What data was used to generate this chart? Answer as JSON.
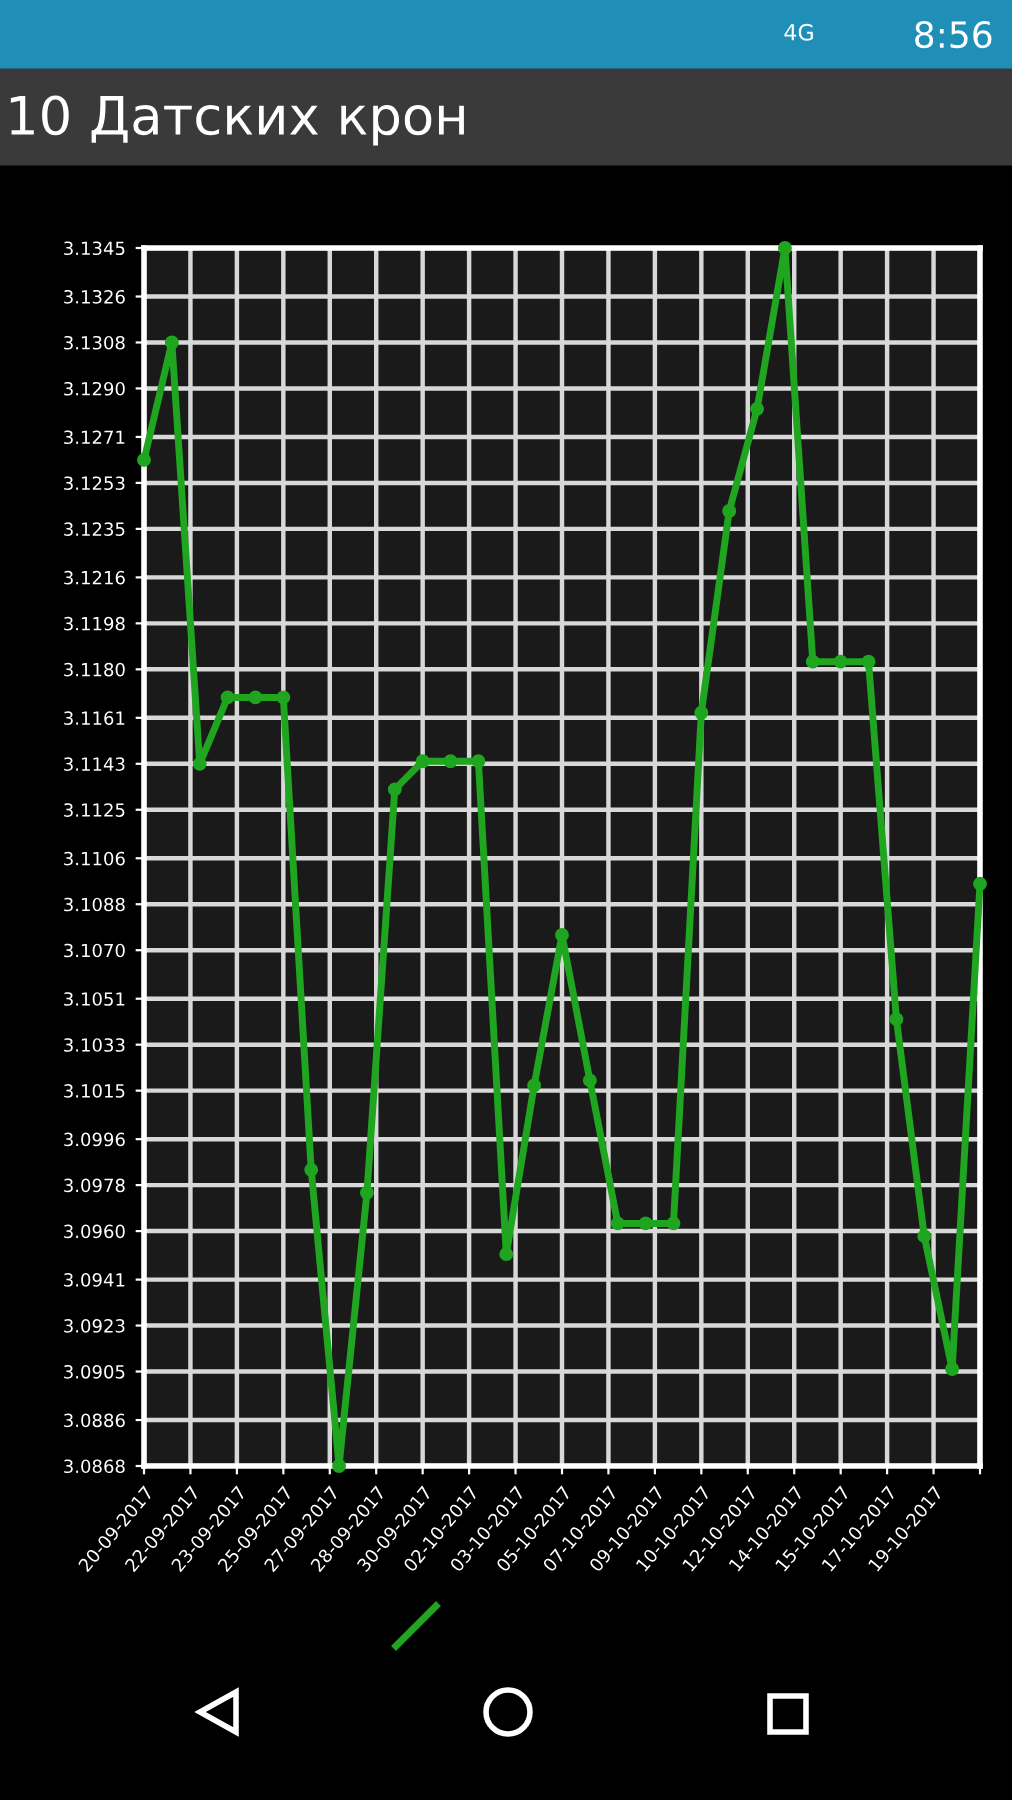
{
  "chart_data": {
    "type": "line",
    "title": "10 Датских крон",
    "annotations": [
      "4G",
      "8:56"
    ],
    "x": [
      "2017-09-20",
      "2017-09-21",
      "2017-09-22",
      "2017-09-23",
      "2017-09-24",
      "2017-09-25",
      "2017-09-26",
      "2017-09-27",
      "2017-09-28",
      "2017-09-29",
      "2017-09-30",
      "2017-10-01",
      "2017-10-02",
      "2017-10-03",
      "2017-10-04",
      "2017-10-05",
      "2017-10-06",
      "2017-10-07",
      "2017-10-08",
      "2017-10-09",
      "2017-10-10",
      "2017-10-11",
      "2017-10-12",
      "2017-10-13",
      "2017-10-14",
      "2017-10-15",
      "2017-10-16",
      "2017-10-17",
      "2017-10-18",
      "2017-10-19",
      "2017-10-20"
    ],
    "series": [
      {
        "color": "#1fa51f",
        "values": [
          3.1262,
          3.1308,
          3.1143,
          3.1169,
          3.1169,
          3.1169,
          3.0984,
          3.0868,
          3.0975,
          3.1133,
          3.1144,
          3.1144,
          3.1144,
          3.0951,
          3.1017,
          3.1076,
          3.1019,
          3.0963,
          3.0963,
          3.0963,
          3.1163,
          3.1242,
          3.1282,
          3.1345,
          3.1183,
          3.1183,
          3.1183,
          3.1043,
          3.0958,
          3.0906,
          3.1096
        ]
      }
    ],
    "xlim": [
      "2017-09-20",
      "2017-10-20"
    ],
    "xticks": [
      {
        "value": "2017-09-20T00:00",
        "label": "20-09-2017"
      },
      {
        "value": "2017-09-21T16:00",
        "label": "22-09-2017"
      },
      {
        "value": "2017-09-23T08:00",
        "label": "23-09-2017"
      },
      {
        "value": "2017-09-25T00:00",
        "label": "25-09-2017"
      },
      {
        "value": "2017-09-26T16:00",
        "label": "27-09-2017"
      },
      {
        "value": "2017-09-28T08:00",
        "label": "28-09-2017"
      },
      {
        "value": "2017-09-30T00:00",
        "label": "30-09-2017"
      },
      {
        "value": "2017-10-01T16:00",
        "label": "02-10-2017"
      },
      {
        "value": "2017-10-03T08:00",
        "label": "03-10-2017"
      },
      {
        "value": "2017-10-05T00:00",
        "label": "05-10-2017"
      },
      {
        "value": "2017-10-06T16:00",
        "label": "07-10-2017"
      },
      {
        "value": "2017-10-08T08:00",
        "label": "09-10-2017"
      },
      {
        "value": "2017-10-10T00:00",
        "label": "10-10-2017"
      },
      {
        "value": "2017-10-11T16:00",
        "label": "12-10-2017"
      },
      {
        "value": "2017-10-13T08:00",
        "label": "14-10-2017"
      },
      {
        "value": "2017-10-15T00:00",
        "label": "15-10-2017"
      },
      {
        "value": "2017-10-16T16:00",
        "label": "17-10-2017"
      },
      {
        "value": "2017-10-18T08:00",
        "label": "19-10-2017"
      },
      {
        "value": "2017-10-20T00:00",
        "label": null
      }
    ],
    "ylim": [
      3.0868,
      3.1345
    ],
    "yticks": [
      3.0868,
      3.0886,
      3.0905,
      3.0923,
      3.0941,
      {
        "value": 3.096,
        "label": "3.0960"
      },
      3.0978,
      3.0996,
      3.1015,
      3.1033,
      3.1051,
      {
        "value": 3.107,
        "label": "3.1070"
      },
      3.1088,
      3.1106,
      3.1125,
      3.1143,
      3.1161,
      {
        "value": 3.118,
        "label": "3.1180"
      },
      3.1198,
      3.1216,
      3.1235,
      3.1253,
      3.1271,
      {
        "value": 3.129,
        "label": "3.1290"
      },
      3.1308,
      3.1326,
      3.1345
    ],
    "grid": true,
    "marker": "circle",
    "line_style": "solid"
  }
}
